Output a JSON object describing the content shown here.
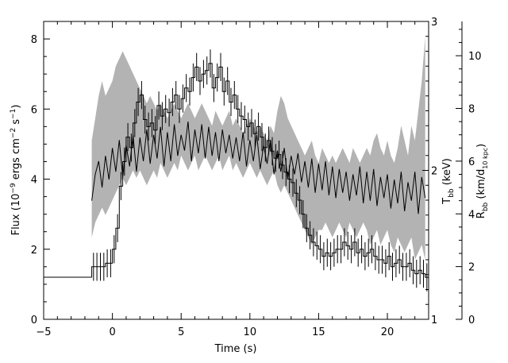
{
  "chart_data": {
    "type": "line",
    "xlabel": "Time (s)",
    "ylabel_left": {
      "main": "Flux (10",
      "sup1": "−9",
      "mid": " ergs cm",
      "sup2": "−2",
      "mid2": " s",
      "sup3": "−1",
      "end": ")"
    },
    "ylabel_right_inner": {
      "main": "T",
      "sub": "bb",
      "end": " (keV)"
    },
    "ylabel_right_outer": {
      "main": "R",
      "sub": "bb",
      "mid": " (km/d",
      "sub2": "10 kpc",
      "end": ")"
    },
    "xlim": [
      -5,
      23
    ],
    "ylim_flux": [
      0,
      8.5
    ],
    "ylim_T": [
      1,
      3
    ],
    "ylim_R": [
      0,
      11.3
    ],
    "x_ticks": [
      -5,
      0,
      5,
      10,
      15,
      20
    ],
    "x_tick_labels": [
      "−5",
      "0",
      "5",
      "10",
      "15",
      "20"
    ],
    "flux_ticks": [
      0,
      2,
      4,
      6,
      8
    ],
    "flux_tick_labels": [
      "0",
      "2",
      "4",
      "6",
      "8"
    ],
    "T_ticks": [
      1,
      2,
      3
    ],
    "T_tick_labels": [
      "1",
      "2",
      "3"
    ],
    "R_ticks": [
      0,
      2,
      4,
      6,
      8,
      10
    ],
    "R_tick_labels": [
      "0",
      "2",
      "4",
      "6",
      "8",
      "10"
    ],
    "flux_series": {
      "name": "Flux",
      "pre_x": [
        -5,
        -1.5
      ],
      "pre_y": 1.2,
      "x": [
        -1.5,
        -1.25,
        -1,
        -0.75,
        -0.5,
        -0.25,
        0,
        0.25,
        0.5,
        0.75,
        1,
        1.25,
        1.5,
        1.75,
        2,
        2.25,
        2.5,
        2.75,
        3,
        3.25,
        3.5,
        3.75,
        4,
        4.25,
        4.5,
        4.75,
        5,
        5.25,
        5.5,
        5.75,
        6,
        6.25,
        6.5,
        6.75,
        7,
        7.25,
        7.5,
        7.75,
        8,
        8.25,
        8.5,
        8.75,
        9,
        9.25,
        9.5,
        9.75,
        10,
        10.25,
        10.5,
        10.75,
        11,
        11.25,
        11.5,
        11.75,
        12,
        12.25,
        12.5,
        12.75,
        13,
        13.25,
        13.5,
        13.75,
        14,
        14.25,
        14.5,
        14.75,
        15,
        15.25,
        15.5,
        15.75,
        16,
        16.25,
        16.5,
        16.75,
        17,
        17.25,
        17.5,
        17.75,
        18,
        18.25,
        18.5,
        18.75,
        19,
        19.25,
        19.5,
        19.75,
        20,
        20.25,
        20.5,
        20.75,
        21,
        21.25,
        21.5,
        21.75,
        22,
        22.25,
        22.5,
        22.75
      ],
      "y": [
        1.5,
        1.5,
        1.5,
        1.5,
        1.6,
        1.6,
        2.0,
        2.6,
        3.8,
        4.5,
        5.2,
        4.9,
        5.6,
        6.2,
        6.4,
        5.7,
        5.5,
        5.6,
        5.4,
        6.1,
        5.8,
        6.0,
        5.9,
        6.2,
        6.4,
        6.0,
        6.3,
        6.6,
        6.5,
        6.9,
        7.2,
        6.8,
        7.0,
        7.1,
        7.3,
        6.6,
        6.9,
        7.2,
        6.5,
        6.8,
        6.2,
        6.4,
        6.0,
        5.8,
        5.7,
        5.5,
        5.6,
        5.3,
        5.5,
        5.2,
        4.9,
        5.1,
        4.8,
        4.6,
        4.7,
        4.4,
        4.2,
        4.0,
        3.9,
        3.6,
        3.4,
        3.0,
        2.6,
        2.4,
        2.2,
        2.1,
        2.0,
        1.8,
        1.9,
        1.8,
        1.9,
        2.0,
        2.0,
        2.2,
        2.1,
        2.0,
        2.2,
        1.9,
        2.0,
        1.8,
        1.9,
        2.0,
        1.8,
        1.7,
        1.7,
        1.6,
        1.8,
        1.5,
        1.6,
        1.7,
        1.5,
        1.5,
        1.6,
        1.4,
        1.3,
        1.4,
        1.3,
        1.2
      ],
      "err": 0.4
    },
    "temperature_series": {
      "name": "Tbb",
      "x": [
        -1.5,
        -1.25,
        -1,
        -0.75,
        -0.5,
        -0.25,
        0,
        0.25,
        0.5,
        0.75,
        1,
        1.25,
        1.5,
        1.75,
        2,
        2.25,
        2.5,
        2.75,
        3,
        3.25,
        3.5,
        3.75,
        4,
        4.25,
        4.5,
        4.75,
        5,
        5.25,
        5.5,
        5.75,
        6,
        6.25,
        6.5,
        6.75,
        7,
        7.25,
        7.5,
        7.75,
        8,
        8.25,
        8.5,
        8.75,
        9,
        9.25,
        9.5,
        9.75,
        10,
        10.25,
        10.5,
        10.75,
        11,
        11.25,
        11.5,
        11.75,
        12,
        12.25,
        12.5,
        12.75,
        13,
        13.25,
        13.5,
        13.75,
        14,
        14.25,
        14.5,
        14.75,
        15,
        15.25,
        15.5,
        15.75,
        16,
        16.25,
        16.5,
        16.75,
        17,
        17.25,
        17.5,
        17.75,
        18,
        18.25,
        18.5,
        18.75,
        19,
        19.25,
        19.5,
        19.75,
        20,
        20.25,
        20.5,
        20.75,
        21,
        21.25,
        21.5,
        21.75,
        22,
        22.25,
        22.5,
        22.75
      ],
      "lo": [
        1.55,
        1.65,
        1.7,
        1.75,
        1.7,
        1.75,
        1.8,
        1.85,
        1.9,
        1.95,
        1.9,
        1.95,
        2.0,
        1.95,
        2.0,
        1.95,
        1.9,
        1.95,
        2.0,
        1.95,
        2.05,
        2.0,
        1.95,
        2.0,
        2.05,
        2.0,
        2.1,
        2.05,
        2.0,
        2.05,
        2.1,
        2.0,
        2.05,
        2.1,
        2.05,
        2.0,
        2.05,
        2.1,
        2.0,
        2.05,
        2.1,
        2.0,
        2.05,
        2.0,
        1.95,
        2.0,
        2.05,
        2.0,
        1.95,
        2.0,
        1.95,
        1.9,
        1.95,
        2.0,
        1.9,
        1.85,
        1.9,
        1.85,
        1.8,
        1.75,
        1.7,
        1.65,
        1.6,
        1.55,
        1.5,
        1.55,
        1.6,
        1.6,
        1.65,
        1.6,
        1.55,
        1.6,
        1.65,
        1.6,
        1.55,
        1.65,
        1.6,
        1.55,
        1.6,
        1.65,
        1.6,
        1.5,
        1.55,
        1.6,
        1.5,
        1.55,
        1.6,
        1.5,
        1.45,
        1.55,
        1.5,
        1.45,
        1.5,
        1.55,
        1.4,
        1.45,
        1.5,
        1.4
      ],
      "hi": [
        2.2,
        2.35,
        2.5,
        2.6,
        2.5,
        2.55,
        2.6,
        2.7,
        2.75,
        2.8,
        2.75,
        2.7,
        2.65,
        2.6,
        2.55,
        2.5,
        2.45,
        2.5,
        2.45,
        2.4,
        2.45,
        2.4,
        2.35,
        2.4,
        2.45,
        2.4,
        2.35,
        2.4,
        2.45,
        2.4,
        2.35,
        2.4,
        2.45,
        2.4,
        2.35,
        2.3,
        2.4,
        2.35,
        2.3,
        2.35,
        2.4,
        2.3,
        2.35,
        2.3,
        2.25,
        2.3,
        2.35,
        2.3,
        2.25,
        2.3,
        2.25,
        2.2,
        2.3,
        2.25,
        2.4,
        2.5,
        2.45,
        2.35,
        2.3,
        2.25,
        2.2,
        2.15,
        2.1,
        2.15,
        2.2,
        2.1,
        2.05,
        2.15,
        2.1,
        2.05,
        2.1,
        2.05,
        2.1,
        2.15,
        2.1,
        2.05,
        2.15,
        2.1,
        2.05,
        2.1,
        2.15,
        2.1,
        2.2,
        2.25,
        2.15,
        2.1,
        2.2,
        2.1,
        2.05,
        2.15,
        2.3,
        2.2,
        2.1,
        2.3,
        2.2,
        2.4,
        2.6,
        2.9
      ]
    },
    "radius_series": {
      "name": "Rbb",
      "x": [
        -1.5,
        -1.25,
        -1,
        -0.75,
        -0.5,
        -0.25,
        0,
        0.25,
        0.5,
        0.75,
        1,
        1.25,
        1.5,
        1.75,
        2,
        2.25,
        2.5,
        2.75,
        3,
        3.25,
        3.5,
        3.75,
        4,
        4.25,
        4.5,
        4.75,
        5,
        5.25,
        5.5,
        5.75,
        6,
        6.25,
        6.5,
        6.75,
        7,
        7.25,
        7.5,
        7.75,
        8,
        8.25,
        8.5,
        8.75,
        9,
        9.25,
        9.5,
        9.75,
        10,
        10.25,
        10.5,
        10.75,
        11,
        11.25,
        11.5,
        11.75,
        12,
        12.25,
        12.5,
        12.75,
        13,
        13.25,
        13.5,
        13.75,
        14,
        14.25,
        14.5,
        14.75,
        15,
        15.25,
        15.5,
        15.75,
        16,
        16.25,
        16.5,
        16.75,
        17,
        17.25,
        17.5,
        17.75,
        18,
        18.25,
        18.5,
        18.75,
        19,
        19.25,
        19.5,
        19.75,
        20,
        20.25,
        20.5,
        20.75,
        21,
        21.25,
        21.5,
        21.75,
        22,
        22.25,
        22.5,
        22.75
      ],
      "y": [
        4.5,
        5.5,
        6.0,
        5.0,
        6.2,
        5.3,
        6.5,
        5.6,
        6.8,
        5.4,
        6.6,
        5.8,
        7.0,
        5.6,
        6.9,
        6.0,
        7.2,
        5.9,
        7.0,
        6.1,
        7.3,
        5.8,
        7.1,
        6.0,
        7.4,
        6.2,
        7.0,
        6.4,
        7.5,
        6.0,
        7.2,
        6.3,
        7.4,
        6.1,
        7.3,
        6.2,
        7.1,
        6.0,
        7.2,
        6.3,
        7.0,
        6.1,
        6.9,
        6.0,
        7.1,
        5.8,
        6.8,
        6.0,
        7.0,
        5.7,
        6.6,
        5.9,
        6.8,
        5.5,
        6.4,
        5.6,
        6.5,
        5.3,
        6.2,
        5.5,
        6.3,
        5.2,
        6.0,
        5.0,
        6.1,
        4.8,
        5.9,
        4.9,
        6.0,
        4.7,
        5.8,
        4.6,
        5.7,
        4.8,
        5.6,
        4.5,
        5.5,
        4.7,
        5.8,
        4.4,
        5.6,
        4.5,
        5.7,
        4.3,
        5.4,
        4.6,
        5.5,
        4.2,
        5.3,
        4.4,
        5.6,
        4.1,
        5.2,
        4.5,
        5.6,
        4.0,
        5.4,
        4.6
      ]
    }
  }
}
